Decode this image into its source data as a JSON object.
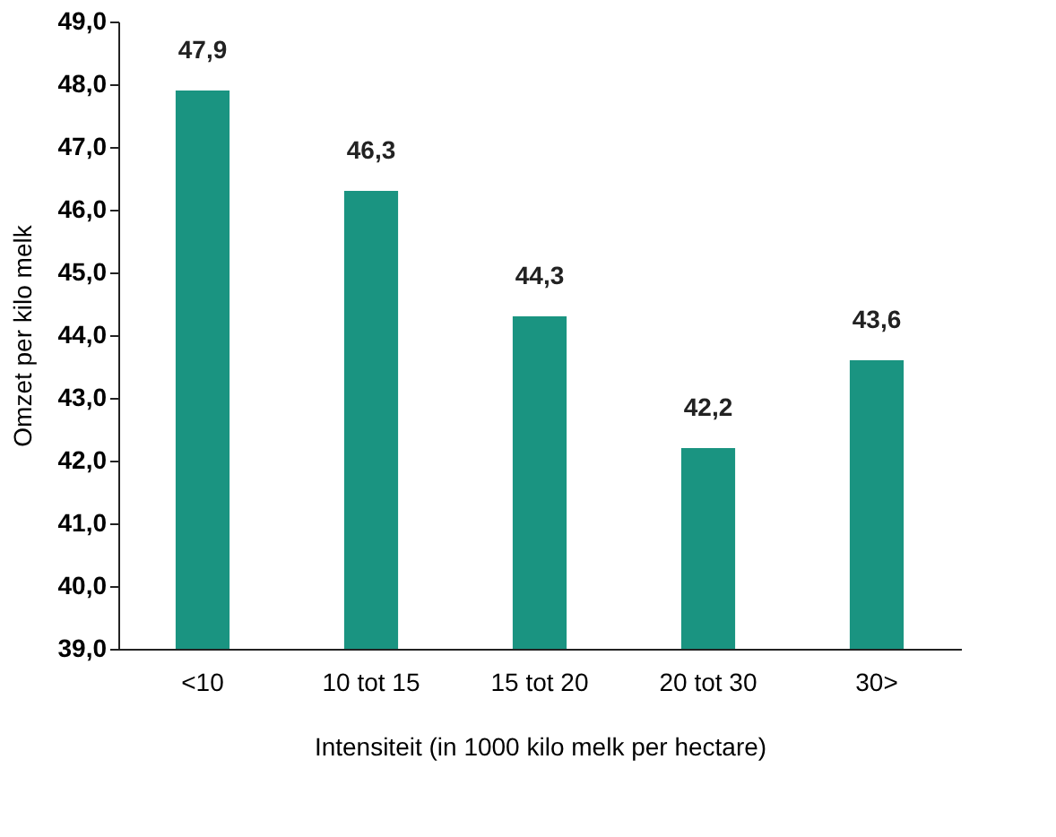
{
  "chart_data": {
    "type": "bar",
    "categories": [
      "<10",
      "10 tot 15",
      "15 tot 20",
      "20 tot 30",
      "30>"
    ],
    "values": [
      47.9,
      46.3,
      44.3,
      42.2,
      43.6
    ],
    "value_labels": [
      "47,9",
      "46,3",
      "44,3",
      "42,2",
      "43,6"
    ],
    "color": "#1a9481",
    "xlabel": "Intensiteit (in 1000 kilo melk per hectare)",
    "ylabel": "Omzet per kilo melk",
    "ylim": [
      39,
      49
    ],
    "yticks": [
      {
        "value": 39,
        "label": "39,0"
      },
      {
        "value": 40,
        "label": "40,0"
      },
      {
        "value": 41,
        "label": "41,0"
      },
      {
        "value": 42,
        "label": "42,0"
      },
      {
        "value": 43,
        "label": "43,0"
      },
      {
        "value": 44,
        "label": "44,0"
      },
      {
        "value": 45,
        "label": "45,0"
      },
      {
        "value": 46,
        "label": "46,0"
      },
      {
        "value": 47,
        "label": "47,0"
      },
      {
        "value": 48,
        "label": "48,0"
      },
      {
        "value": 49,
        "label": "49,0"
      }
    ],
    "grid": false
  }
}
